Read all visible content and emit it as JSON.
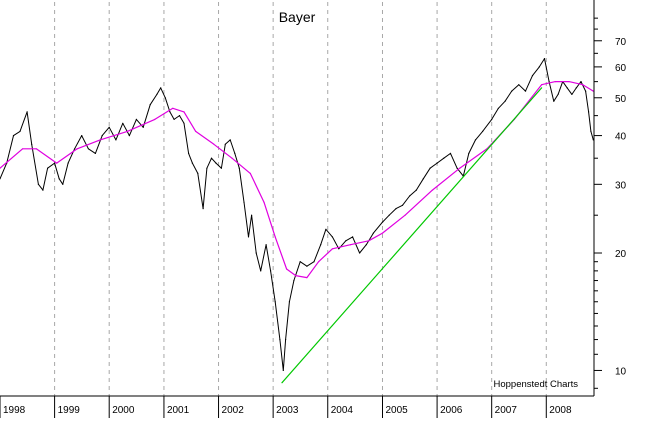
{
  "chart_data": {
    "type": "line",
    "title": "Bayer",
    "watermark": "Hoppenstedt Charts",
    "y_scale": "log",
    "y_axis_position": "right",
    "grid": "vertical-dashed",
    "ylim": [
      8.6,
      88
    ],
    "y_ticks": [
      10,
      20,
      30,
      40,
      50,
      60,
      70
    ],
    "y_tick_labels": [
      "10",
      "20",
      "30",
      "40",
      "50",
      "60",
      "70"
    ],
    "x_range": [
      "1998-01-01",
      "2008-11-15"
    ],
    "x_tick_labels": [
      "1998",
      "1999",
      "2000",
      "2001",
      "2002",
      "2003",
      "2004",
      "2005",
      "2006",
      "2007",
      "2008"
    ],
    "series": [
      {
        "role": "price",
        "color": "#000000",
        "points": [
          [
            "1998-01-01",
            31
          ],
          [
            "1998-02-15",
            34
          ],
          [
            "1998-04-01",
            40
          ],
          [
            "1998-05-15",
            41
          ],
          [
            "1998-07-01",
            46
          ],
          [
            "1998-08-01",
            38
          ],
          [
            "1998-09-15",
            30
          ],
          [
            "1998-10-15",
            29
          ],
          [
            "1998-11-15",
            33
          ],
          [
            "1999-01-01",
            34
          ],
          [
            "1999-02-01",
            31
          ],
          [
            "1999-02-25",
            30
          ],
          [
            "1999-04-01",
            34
          ],
          [
            "1999-05-15",
            37
          ],
          [
            "1999-07-01",
            40
          ],
          [
            "1999-08-15",
            37
          ],
          [
            "1999-10-01",
            36
          ],
          [
            "1999-11-15",
            40
          ],
          [
            "2000-01-01",
            42
          ],
          [
            "2000-02-15",
            39
          ],
          [
            "2000-04-01",
            43
          ],
          [
            "2000-05-15",
            40
          ],
          [
            "2000-07-01",
            44
          ],
          [
            "2000-08-15",
            42
          ],
          [
            "2000-10-01",
            48
          ],
          [
            "2000-11-15",
            51
          ],
          [
            "2000-12-10",
            53
          ],
          [
            "2001-01-10",
            50
          ],
          [
            "2001-02-10",
            46
          ],
          [
            "2001-03-10",
            44
          ],
          [
            "2001-04-15",
            45
          ],
          [
            "2001-05-15",
            43
          ],
          [
            "2001-06-15",
            36
          ],
          [
            "2001-07-10",
            34
          ],
          [
            "2001-08-15",
            32
          ],
          [
            "2001-09-20",
            26
          ],
          [
            "2001-10-15",
            33
          ],
          [
            "2001-11-15",
            35
          ],
          [
            "2001-12-15",
            34
          ],
          [
            "2002-01-20",
            33
          ],
          [
            "2002-02-15",
            38
          ],
          [
            "2002-03-20",
            39
          ],
          [
            "2002-04-20",
            36
          ],
          [
            "2002-05-20",
            33
          ],
          [
            "2002-06-20",
            27
          ],
          [
            "2002-07-20",
            22
          ],
          [
            "2002-08-10",
            25
          ],
          [
            "2002-09-10",
            20
          ],
          [
            "2002-10-10",
            18
          ],
          [
            "2002-11-15",
            21
          ],
          [
            "2002-12-15",
            18
          ],
          [
            "2003-01-15",
            15
          ],
          [
            "2003-02-15",
            12
          ],
          [
            "2003-03-10",
            10
          ],
          [
            "2003-03-25",
            12
          ],
          [
            "2003-04-20",
            15
          ],
          [
            "2003-05-20",
            17
          ],
          [
            "2003-07-01",
            19
          ],
          [
            "2003-08-15",
            18.5
          ],
          [
            "2003-10-01",
            19
          ],
          [
            "2003-11-15",
            21
          ],
          [
            "2003-12-20",
            23
          ],
          [
            "2004-02-01",
            22
          ],
          [
            "2004-03-15",
            20.5
          ],
          [
            "2004-05-01",
            21.5
          ],
          [
            "2004-06-15",
            22
          ],
          [
            "2004-08-01",
            20
          ],
          [
            "2004-09-15",
            21
          ],
          [
            "2004-11-01",
            22.5
          ],
          [
            "2005-01-01",
            24
          ],
          [
            "2005-02-15",
            25
          ],
          [
            "2005-04-01",
            26
          ],
          [
            "2005-05-15",
            26.5
          ],
          [
            "2005-07-01",
            28
          ],
          [
            "2005-08-15",
            29
          ],
          [
            "2005-10-01",
            31
          ],
          [
            "2005-11-15",
            33
          ],
          [
            "2006-01-01",
            34
          ],
          [
            "2006-02-15",
            35
          ],
          [
            "2006-04-01",
            36
          ],
          [
            "2006-05-15",
            33
          ],
          [
            "2006-06-25",
            31.5
          ],
          [
            "2006-08-01",
            36
          ],
          [
            "2006-09-15",
            39
          ],
          [
            "2006-11-01",
            41
          ],
          [
            "2007-01-01",
            44
          ],
          [
            "2007-02-15",
            47
          ],
          [
            "2007-04-01",
            49
          ],
          [
            "2007-05-15",
            52
          ],
          [
            "2007-07-01",
            54
          ],
          [
            "2007-08-15",
            52
          ],
          [
            "2007-10-01",
            57
          ],
          [
            "2007-11-15",
            60
          ],
          [
            "2007-12-20",
            63
          ],
          [
            "2008-01-20",
            55
          ],
          [
            "2008-02-20",
            49
          ],
          [
            "2008-03-20",
            51
          ],
          [
            "2008-04-20",
            55
          ],
          [
            "2008-05-20",
            53
          ],
          [
            "2008-06-20",
            51
          ],
          [
            "2008-07-20",
            53
          ],
          [
            "2008-08-20",
            55
          ],
          [
            "2008-09-20",
            52
          ],
          [
            "2008-10-10",
            46
          ],
          [
            "2008-10-25",
            41
          ],
          [
            "2008-11-10",
            39
          ]
        ]
      },
      {
        "role": "moving-average",
        "color": "#e000e0",
        "points": [
          [
            "1998-01-01",
            33
          ],
          [
            "1998-06-01",
            37
          ],
          [
            "1998-09-01",
            37
          ],
          [
            "1999-01-15",
            34
          ],
          [
            "1999-06-01",
            37
          ],
          [
            "1999-11-01",
            39
          ],
          [
            "2000-05-01",
            41
          ],
          [
            "2000-11-01",
            44
          ],
          [
            "2001-03-01",
            47
          ],
          [
            "2001-05-15",
            46
          ],
          [
            "2001-08-01",
            41
          ],
          [
            "2001-12-01",
            38
          ],
          [
            "2002-04-01",
            35
          ],
          [
            "2002-08-01",
            32
          ],
          [
            "2002-11-01",
            27
          ],
          [
            "2003-01-15",
            22
          ],
          [
            "2003-04-01",
            18.2
          ],
          [
            "2003-06-01",
            17.5
          ],
          [
            "2003-08-15",
            17.3
          ],
          [
            "2003-11-01",
            19
          ],
          [
            "2004-02-01",
            20.5
          ],
          [
            "2004-06-01",
            21
          ],
          [
            "2004-10-01",
            21.5
          ],
          [
            "2005-01-01",
            22.5
          ],
          [
            "2005-06-01",
            25
          ],
          [
            "2005-12-01",
            29
          ],
          [
            "2006-06-01",
            33
          ],
          [
            "2006-12-01",
            37
          ],
          [
            "2007-06-01",
            44
          ],
          [
            "2007-12-01",
            54
          ],
          [
            "2008-03-01",
            55
          ],
          [
            "2008-06-01",
            55
          ],
          [
            "2008-09-01",
            54
          ],
          [
            "2008-11-10",
            52
          ]
        ]
      },
      {
        "role": "trendline",
        "color": "#00c800",
        "points": [
          [
            "2003-03-01",
            9.3
          ],
          [
            "2007-12-01",
            53
          ]
        ]
      }
    ]
  }
}
